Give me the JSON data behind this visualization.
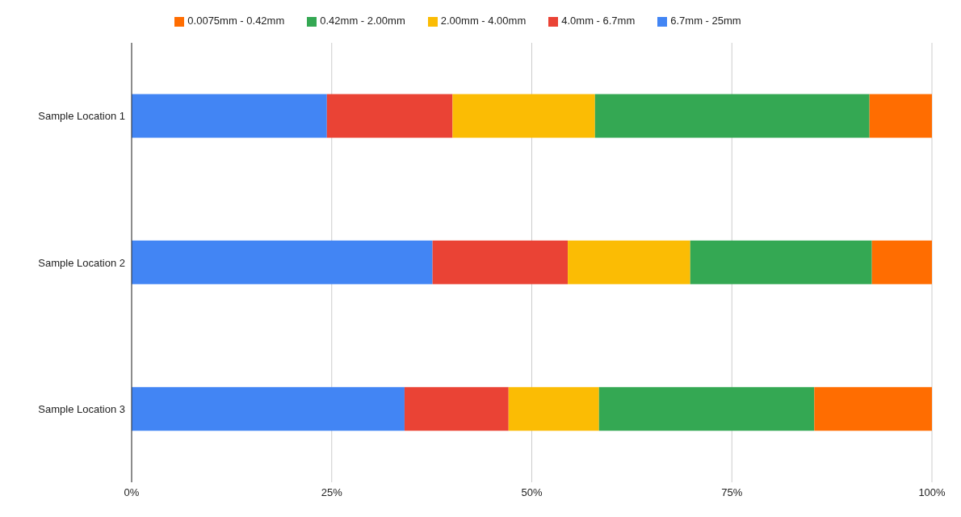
{
  "chart_data": {
    "type": "bar",
    "orientation": "horizontal",
    "stacked": true,
    "categories": [
      "Sample Location 1",
      "Sample Location 2",
      "Sample Location 3"
    ],
    "series": [
      {
        "name": "6.7mm - 25mm",
        "color": "#4285f4",
        "values": [
          24.4,
          37.6,
          34.1
        ]
      },
      {
        "name": "4.0mm - 6.7mm",
        "color": "#ea4335",
        "values": [
          15.7,
          16.9,
          13.0
        ]
      },
      {
        "name": "2.00mm - 4.00mm",
        "color": "#fbbc04",
        "values": [
          17.8,
          15.3,
          11.3
        ]
      },
      {
        "name": "0.42mm - 2.00mm",
        "color": "#34a853",
        "values": [
          34.3,
          22.7,
          26.9
        ]
      },
      {
        "name": "0.0075mm - 0.42mm",
        "color": "#ff6d01",
        "values": [
          7.8,
          7.5,
          14.7
        ]
      }
    ],
    "xlim": [
      0,
      100
    ],
    "xticks": [
      {
        "value": 0,
        "label": "0%"
      },
      {
        "value": 25,
        "label": "25%"
      },
      {
        "value": 50,
        "label": "50%"
      },
      {
        "value": 75,
        "label": "75%"
      },
      {
        "value": 100,
        "label": "100%"
      }
    ],
    "grid": "x",
    "legend": "top"
  }
}
